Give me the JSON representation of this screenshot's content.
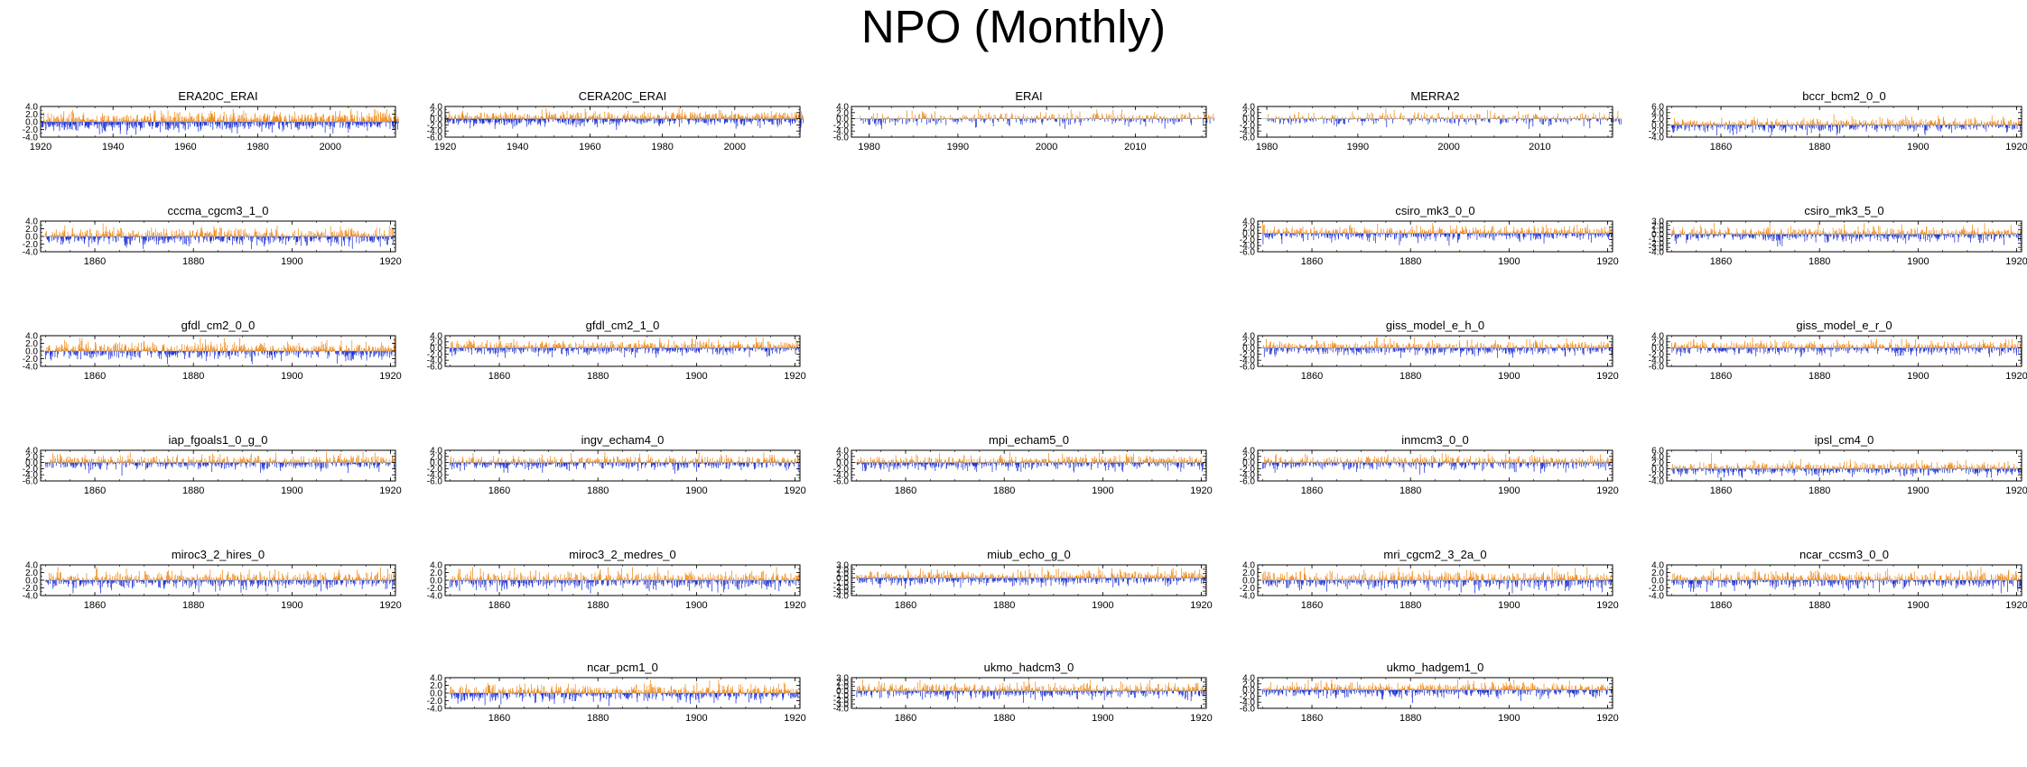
{
  "page_title": "NPO (Monthly)",
  "colors": {
    "positive": "#f28a16",
    "negative": "#1c2fd6",
    "axis": "#000000",
    "zero_line": "#9a9a9a"
  },
  "chart_data": [
    {
      "type": "bar",
      "title": "ERA20C_ERAI",
      "xlim": [
        1920,
        2018
      ],
      "xticks": [
        "1920",
        "1940",
        "1960",
        "1980",
        "2000"
      ],
      "yticks": [
        "4.0",
        "2.0",
        "0.0",
        "-2.0",
        "-4.0"
      ],
      "ylim": [
        -4.0,
        4.0
      ],
      "xstart": 1920,
      "xend": 2018,
      "seed": 11,
      "trend": 0.9
    },
    {
      "type": "bar",
      "title": "CERA20C_ERAI",
      "xlim": [
        1920,
        2018
      ],
      "xticks": [
        "1920",
        "1940",
        "1960",
        "1980",
        "2000"
      ],
      "yticks": [
        "4.0",
        "2.0",
        "0.0",
        "-2.0",
        "-4.0",
        "-6.0"
      ],
      "ylim": [
        -6.0,
        4.0
      ],
      "xstart": 1920,
      "xend": 2018,
      "seed": 23,
      "trend": 0.5
    },
    {
      "type": "bar",
      "title": "ERAI",
      "xlim": [
        1978,
        2018
      ],
      "xticks": [
        "1980",
        "1990",
        "2000",
        "2010"
      ],
      "yticks": [
        "4.0",
        "2.0",
        "0.0",
        "-2.0",
        "-4.0",
        "-6.0"
      ],
      "ylim": [
        -6.0,
        4.0
      ],
      "xstart": 1979,
      "xend": 2018,
      "seed": 37,
      "trend": 0.3
    },
    {
      "type": "bar",
      "title": "MERRA2",
      "xlim": [
        1979,
        2018
      ],
      "xticks": [
        "1980",
        "1990",
        "2000",
        "2010"
      ],
      "yticks": [
        "4.0",
        "2.0",
        "0.0",
        "-2.0",
        "-4.0",
        "-6.0"
      ],
      "ylim": [
        -6.0,
        4.0
      ],
      "xstart": 1980,
      "xend": 2018,
      "seed": 41,
      "trend": 0.3
    },
    {
      "type": "bar",
      "title": "bccr_bcm2_0_0",
      "xlim": [
        1849,
        1921
      ],
      "xticks": [
        "1860",
        "1880",
        "1900",
        "1920"
      ],
      "yticks": [
        "6.0",
        "4.0",
        "2.0",
        "0.0",
        "-2.0",
        "-4.0"
      ],
      "ylim": [
        -4.0,
        6.0
      ],
      "xstart": 1850,
      "xend": 1920,
      "seed": 53,
      "trend": 0.4
    },
    {
      "type": "bar",
      "title": "cccma_cgcm3_1_0",
      "xlim": [
        1849,
        1921
      ],
      "xticks": [
        "1860",
        "1880",
        "1900",
        "1920"
      ],
      "yticks": [
        "4.0",
        "2.0",
        "0.0",
        "-2.0",
        "-4.0"
      ],
      "ylim": [
        -4.0,
        4.0
      ],
      "xstart": 1850,
      "xend": 1920,
      "seed": 61,
      "trend": 0.0
    },
    {
      "type": "bar",
      "title": "csiro_mk3_0_0",
      "xlim": [
        1849,
        1921
      ],
      "xticks": [
        "1860",
        "1880",
        "1900",
        "1920"
      ],
      "yticks": [
        "4.0",
        "2.0",
        "0.0",
        "-2.0",
        "-4.0",
        "-6.0"
      ],
      "ylim": [
        -6.0,
        4.0
      ],
      "xstart": 1850,
      "xend": 1920,
      "seed": 71,
      "trend": 0.2
    },
    {
      "type": "bar",
      "title": "csiro_mk3_5_0",
      "xlim": [
        1849,
        1921
      ],
      "xticks": [
        "1860",
        "1880",
        "1900",
        "1920"
      ],
      "yticks": [
        "3.0",
        "2.0",
        "1.0",
        "0.0",
        "-1.0",
        "-2.0",
        "-3.0",
        "-4.0"
      ],
      "ylim": [
        -4.0,
        3.0
      ],
      "xstart": 1850,
      "xend": 1920,
      "seed": 79,
      "trend": 0.2
    },
    {
      "type": "bar",
      "title": "gfdl_cm2_0_0",
      "xlim": [
        1849,
        1921
      ],
      "xticks": [
        "1860",
        "1880",
        "1900",
        "1920"
      ],
      "yticks": [
        "4.0",
        "2.0",
        "0.0",
        "-2.0",
        "-4.0"
      ],
      "ylim": [
        -4.0,
        4.0
      ],
      "xstart": 1850,
      "xend": 1920,
      "seed": 83,
      "trend": 0.0
    },
    {
      "type": "bar",
      "title": "gfdl_cm2_1_0",
      "xlim": [
        1849,
        1921
      ],
      "xticks": [
        "1860",
        "1880",
        "1900",
        "1920"
      ],
      "yticks": [
        "4.0",
        "2.0",
        "0.0",
        "-2.0",
        "-4.0",
        "-6.0"
      ],
      "ylim": [
        -6.0,
        4.0
      ],
      "xstart": 1850,
      "xend": 1920,
      "seed": 89,
      "trend": 0.3
    },
    {
      "type": "bar",
      "title": "giss_model_e_h_0",
      "xlim": [
        1849,
        1921
      ],
      "xticks": [
        "1860",
        "1880",
        "1900",
        "1920"
      ],
      "yticks": [
        "4.0",
        "2.0",
        "0.0",
        "-2.0",
        "-4.0",
        "-6.0"
      ],
      "ylim": [
        -6.0,
        4.0
      ],
      "xstart": 1850,
      "xend": 1920,
      "seed": 97,
      "trend": 0.1
    },
    {
      "type": "bar",
      "title": "giss_model_e_r_0",
      "xlim": [
        1849,
        1921
      ],
      "xticks": [
        "1860",
        "1880",
        "1900",
        "1920"
      ],
      "yticks": [
        "4.0",
        "2.0",
        "0.0",
        "-2.0",
        "-4.0",
        "-6.0"
      ],
      "ylim": [
        -6.0,
        4.0
      ],
      "xstart": 1850,
      "xend": 1920,
      "seed": 101,
      "trend": 0.1
    },
    {
      "type": "bar",
      "title": "iap_fgoals1_0_g_0",
      "xlim": [
        1849,
        1921
      ],
      "xticks": [
        "1860",
        "1880",
        "1900",
        "1920"
      ],
      "yticks": [
        "4.0",
        "2.0",
        "0.0",
        "-2.0",
        "-4.0",
        "-6.0"
      ],
      "ylim": [
        -6.0,
        4.0
      ],
      "xstart": 1850,
      "xend": 1920,
      "seed": 103,
      "trend": 0.2
    },
    {
      "type": "bar",
      "title": "ingv_echam4_0",
      "xlim": [
        1849,
        1921
      ],
      "xticks": [
        "1860",
        "1880",
        "1900",
        "1920"
      ],
      "yticks": [
        "4.0",
        "2.0",
        "0.0",
        "-2.0",
        "-4.0",
        "-6.0"
      ],
      "ylim": [
        -6.0,
        4.0
      ],
      "xstart": 1850,
      "xend": 1920,
      "seed": 107,
      "trend": 0.2
    },
    {
      "type": "bar",
      "title": "mpi_echam5_0",
      "xlim": [
        1849,
        1921
      ],
      "xticks": [
        "1860",
        "1880",
        "1900",
        "1920"
      ],
      "yticks": [
        "4.0",
        "2.0",
        "0.0",
        "-2.0",
        "-4.0",
        "-6.0"
      ],
      "ylim": [
        -6.0,
        4.0
      ],
      "xstart": 1850,
      "xend": 1920,
      "seed": 109,
      "trend": 0.3
    },
    {
      "type": "bar",
      "title": "inmcm3_0_0",
      "xlim": [
        1849,
        1921
      ],
      "xticks": [
        "1860",
        "1880",
        "1900",
        "1920"
      ],
      "yticks": [
        "4.0",
        "2.0",
        "0.0",
        "-2.0",
        "-4.0",
        "-6.0"
      ],
      "ylim": [
        -6.0,
        4.0
      ],
      "xstart": 1850,
      "xend": 1920,
      "seed": 113,
      "trend": 0.2
    },
    {
      "type": "bar",
      "title": "ipsl_cm4_0",
      "xlim": [
        1849,
        1921
      ],
      "xticks": [
        "1860",
        "1880",
        "1900",
        "1920"
      ],
      "yticks": [
        "6.0",
        "4.0",
        "2.0",
        "0.0",
        "-2.0",
        "-4.0"
      ],
      "ylim": [
        -4.0,
        6.0
      ],
      "xstart": 1850,
      "xend": 1920,
      "seed": 127,
      "trend": 0.1
    },
    {
      "type": "bar",
      "title": "miroc3_2_hires_0",
      "xlim": [
        1849,
        1921
      ],
      "xticks": [
        "1860",
        "1880",
        "1900",
        "1920"
      ],
      "yticks": [
        "4.0",
        "2.0",
        "0.0",
        "-2.0",
        "-4.0"
      ],
      "ylim": [
        -4.0,
        4.0
      ],
      "xstart": 1850,
      "xend": 1920,
      "seed": 131,
      "trend": 0.2
    },
    {
      "type": "bar",
      "title": "miroc3_2_medres_0",
      "xlim": [
        1849,
        1921
      ],
      "xticks": [
        "1860",
        "1880",
        "1900",
        "1920"
      ],
      "yticks": [
        "4.0",
        "2.0",
        "0.0",
        "-2.0",
        "-4.0"
      ],
      "ylim": [
        -4.0,
        4.0
      ],
      "xstart": 1850,
      "xend": 1920,
      "seed": 137,
      "trend": 0.1
    },
    {
      "type": "bar",
      "title": "miub_echo_g_0",
      "xlim": [
        1849,
        1921
      ],
      "xticks": [
        "1860",
        "1880",
        "1900",
        "1920"
      ],
      "yticks": [
        "3.0",
        "2.0",
        "1.0",
        "0.0",
        "-1.0",
        "-2.0",
        "-3.0",
        "-4.0"
      ],
      "ylim": [
        -4.0,
        3.0
      ],
      "xstart": 1850,
      "xend": 1920,
      "seed": 139,
      "trend": 0.2
    },
    {
      "type": "bar",
      "title": "mri_cgcm2_3_2a_0",
      "xlim": [
        1849,
        1921
      ],
      "xticks": [
        "1860",
        "1880",
        "1900",
        "1920"
      ],
      "yticks": [
        "4.0",
        "2.0",
        "0.0",
        "-2.0",
        "-4.0"
      ],
      "ylim": [
        -4.0,
        4.0
      ],
      "xstart": 1850,
      "xend": 1920,
      "seed": 149,
      "trend": 0.1
    },
    {
      "type": "bar",
      "title": "ncar_ccsm3_0_0",
      "xlim": [
        1849,
        1921
      ],
      "xticks": [
        "1860",
        "1880",
        "1900",
        "1920"
      ],
      "yticks": [
        "4.0",
        "2.0",
        "0.0",
        "-2.0",
        "-4.0"
      ],
      "ylim": [
        -4.0,
        4.0
      ],
      "xstart": 1850,
      "xend": 1920,
      "seed": 151,
      "trend": 0.1
    },
    {
      "type": "bar",
      "title": "ncar_pcm1_0",
      "xlim": [
        1849,
        1921
      ],
      "xticks": [
        "1860",
        "1880",
        "1900",
        "1920"
      ],
      "yticks": [
        "4.0",
        "2.0",
        "0.0",
        "-2.0",
        "-4.0"
      ],
      "ylim": [
        -4.0,
        4.0
      ],
      "xstart": 1850,
      "xend": 1920,
      "seed": 157,
      "trend": 0.1
    },
    {
      "type": "bar",
      "title": "ukmo_hadcm3_0",
      "xlim": [
        1849,
        1921
      ],
      "xticks": [
        "1860",
        "1880",
        "1900",
        "1920"
      ],
      "yticks": [
        "3.0",
        "2.0",
        "1.0",
        "0.0",
        "-1.0",
        "-2.0",
        "-3.0",
        "-4.0"
      ],
      "ylim": [
        -4.0,
        3.0
      ],
      "xstart": 1850,
      "xend": 1920,
      "seed": 163,
      "trend": 0.1
    },
    {
      "type": "bar",
      "title": "ukmo_hadgem1_0",
      "xlim": [
        1849,
        1921
      ],
      "xticks": [
        "1860",
        "1880",
        "1900",
        "1920"
      ],
      "yticks": [
        "4.0",
        "2.0",
        "0.0",
        "-2.0",
        "-4.0",
        "-6.0"
      ],
      "ylim": [
        -6.0,
        4.0
      ],
      "xstart": 1850,
      "xend": 1920,
      "seed": 167,
      "trend": 0.2
    }
  ]
}
